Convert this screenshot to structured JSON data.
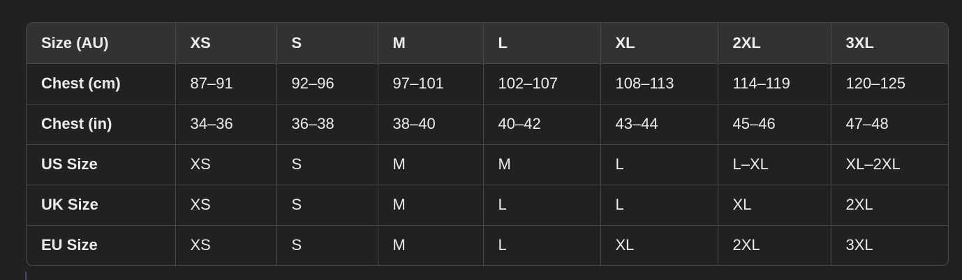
{
  "table": {
    "headers": [
      "Size (AU)",
      "XS",
      "S",
      "M",
      "L",
      "XL",
      "2XL",
      "3XL"
    ],
    "rows": [
      [
        "Chest (cm)",
        "87–91",
        "92–96",
        "97–101",
        "102–107",
        "108–113",
        "114–119",
        "120–125"
      ],
      [
        "Chest (in)",
        "34–36",
        "36–38",
        "38–40",
        "40–42",
        "43–44",
        "45–46",
        "47–48"
      ],
      [
        "US Size",
        "XS",
        "S",
        "M",
        "M",
        "L",
        "L–XL",
        "XL–2XL"
      ],
      [
        "UK Size",
        "XS",
        "S",
        "M",
        "L",
        "L",
        "XL",
        "2XL"
      ],
      [
        "EU Size",
        "XS",
        "S",
        "M",
        "L",
        "XL",
        "2XL",
        "3XL"
      ]
    ]
  }
}
